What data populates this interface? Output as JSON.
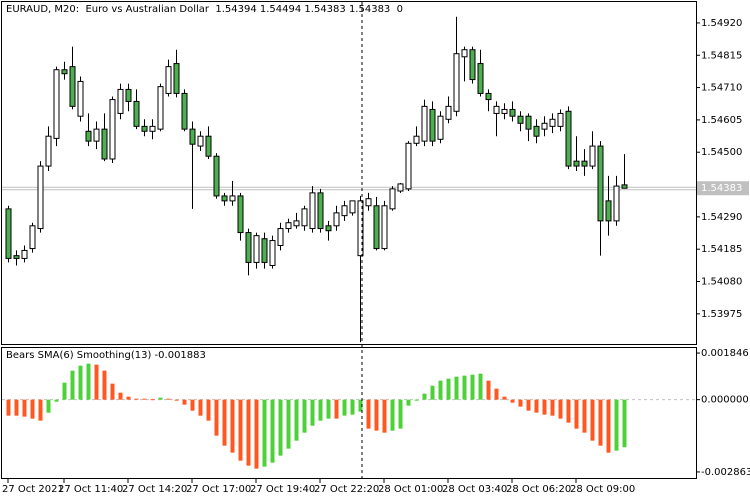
{
  "chart_data": [
    {
      "type": "candlestick",
      "title": "EURAUD, M20:  Euro vs Australian Dollar  1.54394 1.54494 1.54383 1.54383  0",
      "categories": [
        "27 Oct 2021",
        null,
        null,
        null,
        null,
        null,
        null,
        "27 Oct 11:40",
        null,
        null,
        null,
        null,
        null,
        null,
        null,
        "27 Oct 14:20",
        null,
        null,
        null,
        null,
        null,
        null,
        null,
        "27 Oct 17:00",
        null,
        null,
        null,
        null,
        null,
        null,
        null,
        "27 Oct 19:40",
        null,
        null,
        null,
        null,
        null,
        null,
        null,
        "27 Oct 22:20",
        null,
        null,
        null,
        null,
        null,
        null,
        null,
        "28 Oct 01:00",
        null,
        null,
        null,
        null,
        null,
        null,
        null,
        "28 Oct 03:40",
        null,
        null,
        null,
        null,
        null,
        null,
        null,
        "28 Oct 06:20",
        null,
        null,
        null,
        null,
        null,
        null,
        null,
        "28 Oct 09:00",
        null,
        null,
        null,
        null,
        null,
        null
      ],
      "open": [
        1.54316,
        1.54164,
        1.54155,
        1.54187,
        1.54252,
        1.54455,
        1.54545,
        1.54768,
        1.54778,
        1.54617,
        1.54568,
        1.54536,
        1.54575,
        1.54478,
        1.54626,
        1.54704,
        1.54665,
        1.54584,
        1.54568,
        1.54575,
        1.54691,
        1.54788,
        1.54691,
        1.54575,
        1.5452,
        1.54552,
        1.54487,
        1.54358,
        1.54342,
        1.54358,
        1.54239,
        1.54142,
        1.54219,
        1.54132,
        1.54197,
        1.54252,
        1.54261,
        1.54261,
        1.54252,
        1.54368,
        1.54261,
        1.54261,
        1.54294,
        1.54303,
        1.54164,
        1.54326,
        1.54326,
        1.54187,
        1.54316,
        1.54374,
        1.54381,
        1.54529,
        1.54536,
        1.54639,
        1.54542,
        1.54607,
        1.54633,
        1.5481,
        1.54833,
        1.54788,
        1.54691,
        1.54626,
        1.54626,
        1.54639,
        1.54617,
        1.54617,
        1.54584,
        1.54575,
        1.54584,
        1.54584,
        1.54633,
        1.54471,
        1.54471,
        1.54455,
        1.5452,
        1.54342,
        1.54277,
        1.54394
      ],
      "high": [
        1.54326,
        1.54181,
        1.54197,
        1.54271,
        1.54471,
        1.54584,
        1.54778,
        1.54794,
        1.54843,
        1.54746,
        1.54626,
        1.546,
        1.54626,
        1.54681,
        1.54723,
        1.54723,
        1.54704,
        1.54607,
        1.54607,
        1.54723,
        1.54801,
        1.54833,
        1.54704,
        1.546,
        1.54568,
        1.54584,
        1.54497,
        1.54368,
        1.54407,
        1.54368,
        1.54252,
        1.54239,
        1.54239,
        1.54229,
        1.54271,
        1.54284,
        1.54303,
        1.54326,
        1.5439,
        1.54381,
        1.54277,
        1.54326,
        1.54342,
        1.54342,
        1.54358,
        1.54368,
        1.54355,
        1.54342,
        1.5439,
        1.544,
        1.54536,
        1.54584,
        1.54671,
        1.54665,
        1.54633,
        1.54681,
        1.5494,
        1.54843,
        1.54843,
        1.54833,
        1.54704,
        1.54665,
        1.54659,
        1.54665,
        1.54633,
        1.54626,
        1.54607,
        1.54617,
        1.54626,
        1.54639,
        1.54649,
        1.54552,
        1.5451,
        1.54568,
        1.54536,
        1.54423,
        1.54423,
        1.54494
      ],
      "low": [
        1.54142,
        1.54132,
        1.54142,
        1.54174,
        1.54239,
        1.54439,
        1.5452,
        1.54736,
        1.54639,
        1.546,
        1.5452,
        1.5451,
        1.54471,
        1.54465,
        1.54607,
        1.54633,
        1.54575,
        1.54552,
        1.54542,
        1.54568,
        1.54681,
        1.54678,
        1.54568,
        1.54316,
        1.54504,
        1.54478,
        1.54349,
        1.54326,
        1.54326,
        1.54213,
        1.541,
        1.54122,
        1.54122,
        1.54122,
        1.54181,
        1.54239,
        1.54252,
        1.54245,
        1.54239,
        1.54239,
        1.54213,
        1.54245,
        1.54277,
        1.54294,
        1.53883,
        1.5431,
        1.54181,
        1.54181,
        1.5431,
        1.54368,
        1.54374,
        1.5452,
        1.5452,
        1.5452,
        1.54529,
        1.54594,
        1.54617,
        1.5473,
        1.54723,
        1.54681,
        1.54633,
        1.54552,
        1.54607,
        1.546,
        1.54568,
        1.54536,
        1.54529,
        1.54552,
        1.54562,
        1.54568,
        1.54445,
        1.54439,
        1.54423,
        1.54445,
        1.54164,
        1.54229,
        1.54261,
        1.54383
      ],
      "close": [
        1.54155,
        1.54155,
        1.54181,
        1.54261,
        1.54455,
        1.54552,
        1.54768,
        1.54755,
        1.54649,
        1.5473,
        1.54536,
        1.54575,
        1.54478,
        1.54671,
        1.54704,
        1.54665,
        1.54584,
        1.54568,
        1.54584,
        1.54713,
        1.54778,
        1.54691,
        1.54575,
        1.54526,
        1.54552,
        1.54487,
        1.54358,
        1.54342,
        1.54358,
        1.54239,
        1.54142,
        1.54229,
        1.54142,
        1.54213,
        1.54252,
        1.54271,
        1.54277,
        1.54316,
        1.54368,
        1.54252,
        1.54245,
        1.54303,
        1.54326,
        1.54342,
        1.54342,
        1.54349,
        1.54187,
        1.54326,
        1.54381,
        1.54397,
        1.54529,
        1.54552,
        1.54649,
        1.54536,
        1.54617,
        1.54649,
        1.5482,
        1.54833,
        1.54736,
        1.54691,
        1.54671,
        1.54649,
        1.54639,
        1.54617,
        1.54594,
        1.54575,
        1.54552,
        1.54594,
        1.54607,
        1.54626,
        1.54455,
        1.54455,
        1.54455,
        1.5452,
        1.54277,
        1.54277,
        1.5439,
        1.54383
      ],
      "up_color": "#ffffff",
      "down_color": "#4caf50",
      "outline_color": "#000000",
      "ylim": [
        1.53877,
        1.54988
      ],
      "yticks": [
        {
          "value": 1.53975,
          "label": "1.53975"
        },
        {
          "value": 1.5408,
          "label": "1.54080"
        },
        {
          "value": 1.54185,
          "label": "1.54185"
        },
        {
          "value": 1.5429,
          "label": "1.54290"
        },
        {
          "value": 1.545,
          "label": "1.54500"
        },
        {
          "value": 1.54605,
          "label": "1.54605"
        },
        {
          "value": 1.5471,
          "label": "1.54710"
        },
        {
          "value": 1.54815,
          "label": "1.54815"
        },
        {
          "value": 1.5492,
          "label": "1.54920"
        }
      ],
      "last_price": {
        "value": 1.54383,
        "label": "1.54383"
      }
    },
    {
      "type": "bar",
      "title": "Bears SMA(6) Smoothing(13) -0.001883",
      "values": [
        -0.000634,
        -0.000634,
        -0.000673,
        -0.000752,
        -0.000832,
        -0.000515,
        -7.9e-05,
        0.000673,
        0.001148,
        0.001346,
        0.001426,
        0.001386,
        0.001148,
        0.000634,
        0.000277,
        0.000119,
        4e-05,
        4e-05,
        2e-05,
        7.9e-05,
        4e-05,
        -4e-05,
        -0.000198,
        -0.000436,
        -0.000634,
        -0.000832,
        -0.001426,
        -0.001822,
        -0.002099,
        -0.002416,
        -0.002614,
        -0.002732,
        -0.002653,
        -0.002495,
        -0.002218,
        -0.00194,
        -0.001624,
        -0.001307,
        -0.00103,
        -0.000832,
        -0.000752,
        -0.000752,
        -0.000634,
        -0.000594,
        -0.000475,
        -0.001148,
        -0.001228,
        -0.001307,
        -0.001228,
        -0.001148,
        -0.000238,
        -4e-05,
        0.000238,
        0.000554,
        0.000752,
        0.000832,
        0.000911,
        0.00095,
        0.00099,
        0.00103,
        0.000752,
        0.000436,
        0.000119,
        -0.000119,
        -0.000277,
        -0.000436,
        -0.000515,
        -0.000594,
        -0.000634,
        -0.000752,
        -0.000911,
        -0.001148,
        -0.001307,
        -0.001624,
        -0.001822,
        -0.002099,
        -0.00202,
        -0.001883
      ],
      "up_color": "#4cd137",
      "down_color": "#ff5722",
      "ylim": [
        -0.003103,
        0.002046
      ],
      "yticks": [
        {
          "value": 0.001846,
          "label": "0.001846"
        },
        {
          "value": 0,
          "label": "0.000000"
        },
        {
          "value": -0.002863,
          "label": "-0.002863"
        }
      ],
      "zero_line": true
    }
  ]
}
